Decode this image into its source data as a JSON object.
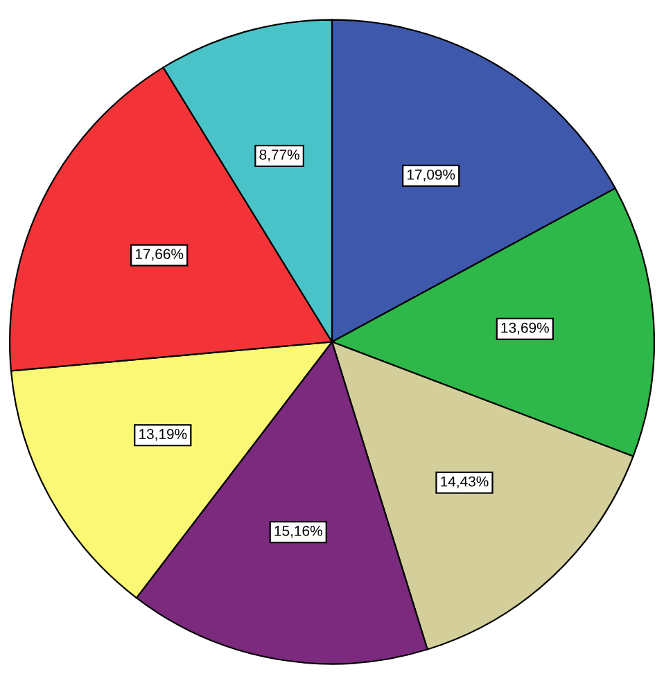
{
  "chart_data": {
    "type": "pie",
    "categories": [
      null,
      null,
      null,
      null,
      null,
      null,
      null
    ],
    "values": [
      17.09,
      13.69,
      14.43,
      15.16,
      13.19,
      17.66,
      8.77
    ],
    "value_labels": [
      "17,09%",
      "13,69%",
      "14,43%",
      "15,16%",
      "13,19%",
      "17,66%",
      "8,77%"
    ],
    "colors": [
      "#3e58ac",
      "#2fb84a",
      "#d4cf9a",
      "#7b2a7e",
      "#fbf876",
      "#f23438",
      "#4ac3c8"
    ]
  }
}
